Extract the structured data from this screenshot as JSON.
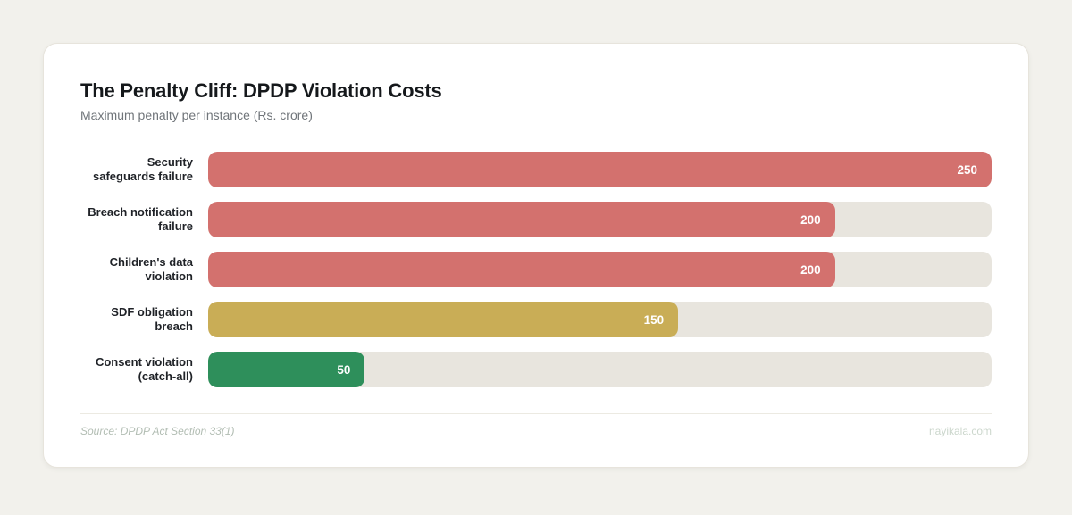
{
  "card": {
    "title": "The Penalty Cliff: DPDP Violation Costs",
    "subtitle": "Maximum penalty per instance (Rs. crore)",
    "source_note": "Source: DPDP Act Section 33(1)",
    "watermark": "nayikala.com"
  },
  "colors": {
    "page_bg": "#f2f1ec",
    "card_bg": "#ffffff",
    "card_border": "#e7e4dc",
    "track": "#e8e5de",
    "severe_red": "#d3716e",
    "medium_gold": "#c9ad56",
    "low_green": "#2e8f5b",
    "title_text": "#15181b",
    "subtitle_text": "#70757a",
    "source_text": "#b2bdb3",
    "watermark_text": "#ccd7cd"
  },
  "chart_data": {
    "type": "bar",
    "orientation": "horizontal",
    "title": "The Penalty Cliff: DPDP Violation Costs",
    "subtitle": "Maximum penalty per instance (Rs. crore)",
    "unit": "Rs. crore",
    "categories": [
      "Security safeguards failure",
      "Breach notification failure",
      "Children's data violation",
      "SDF obligation breach",
      "Consent violation (catch-all)"
    ],
    "labels_display": [
      "Security\nsafeguards failure",
      "Breach notification\nfailure",
      "Children's data\nviolation",
      "SDF obligation\nbreach",
      "Consent violation\n(catch-all)"
    ],
    "values": [
      250,
      200,
      200,
      150,
      50
    ],
    "value_labels": [
      "250",
      "200",
      "200",
      "150",
      "50"
    ],
    "bar_colors": [
      "#d3716e",
      "#d3716e",
      "#d3716e",
      "#c9ad56",
      "#2e8f5b"
    ],
    "xlim": [
      0,
      250
    ],
    "grid": false,
    "legend": false,
    "value_label_position": "inside-end"
  }
}
